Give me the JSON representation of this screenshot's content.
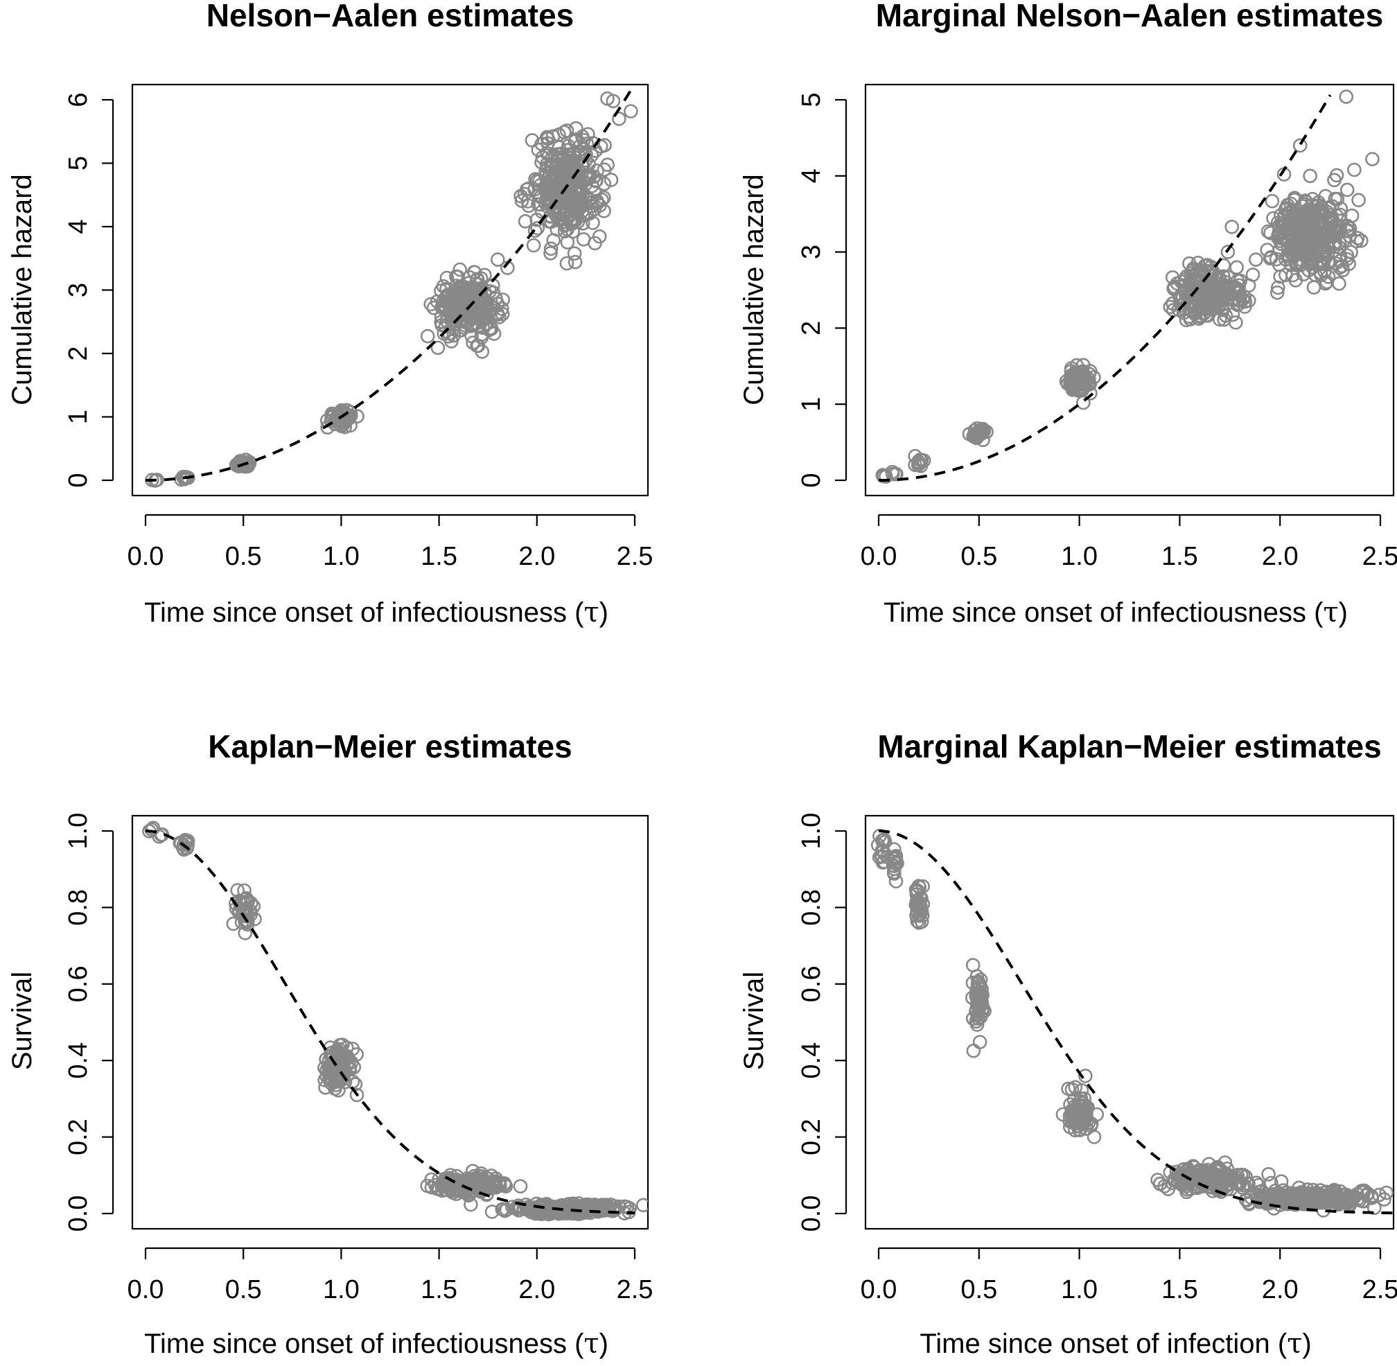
{
  "chart_data": [
    {
      "type": "scatter",
      "title": "Nelson−Aalen estimates",
      "xlabel": "Time since onset of infectiousness (",
      "xlabel_symbol": "τ",
      "xlabel_close": ")",
      "ylabel": "Cumulative hazard",
      "xlim": [
        0,
        2.5
      ],
      "ylim": [
        0,
        6
      ],
      "xticks": [
        "0.0",
        "0.5",
        "1.0",
        "1.5",
        "2.0",
        "2.5"
      ],
      "yticks": [
        "0",
        "1",
        "2",
        "3",
        "4",
        "5",
        "6"
      ],
      "point_color": "#888888",
      "reference_curve": {
        "style": "dashed",
        "color": "#000000",
        "formula": "tau^2",
        "x_range": [
          0,
          2.52
        ]
      },
      "clusters": [
        {
          "x": 0.04,
          "y": 0.0,
          "sx": 0.01,
          "sy": 0.01,
          "n": 3
        },
        {
          "x": 0.2,
          "y": 0.04,
          "sx": 0.015,
          "sy": 0.015,
          "n": 8
        },
        {
          "x": 0.5,
          "y": 0.25,
          "sx": 0.025,
          "sy": 0.03,
          "n": 25
        },
        {
          "x": 1.0,
          "y": 1.0,
          "sx": 0.035,
          "sy": 0.06,
          "n": 60
        },
        {
          "x": 1.65,
          "y": 2.72,
          "sx": 0.08,
          "sy": 0.22,
          "n": 220
        },
        {
          "x": 2.15,
          "y": 4.62,
          "sx": 0.09,
          "sy": 0.4,
          "n": 320
        }
      ],
      "outliers": [
        {
          "x": 2.36,
          "y": 6.02
        },
        {
          "x": 2.39,
          "y": 5.98
        },
        {
          "x": 2.48,
          "y": 5.82
        },
        {
          "x": 2.42,
          "y": 5.7
        },
        {
          "x": 2.2,
          "y": 5.55
        },
        {
          "x": 1.8,
          "y": 3.48
        },
        {
          "x": 1.85,
          "y": 3.35
        }
      ]
    },
    {
      "type": "scatter",
      "title": "Marginal Nelson−Aalen estimates",
      "xlabel": "Time since onset of infectiousness (",
      "xlabel_symbol": "τ",
      "xlabel_close": ")",
      "ylabel": "Cumulative hazard",
      "xlim": [
        0,
        2.5
      ],
      "ylim": [
        0,
        5
      ],
      "xticks": [
        "0.0",
        "0.5",
        "1.0",
        "1.5",
        "2.0",
        "2.5"
      ],
      "yticks": [
        "0",
        "1",
        "2",
        "3",
        "4",
        "5"
      ],
      "point_color": "#888888",
      "reference_curve": {
        "style": "dashed",
        "color": "#000000",
        "formula": "tau^2",
        "x_range": [
          0,
          2.25
        ]
      },
      "clusters": [
        {
          "x": 0.03,
          "y": 0.05,
          "sx": 0.01,
          "sy": 0.02,
          "n": 4
        },
        {
          "x": 0.08,
          "y": 0.1,
          "sx": 0.01,
          "sy": 0.02,
          "n": 4
        },
        {
          "x": 0.2,
          "y": 0.24,
          "sx": 0.015,
          "sy": 0.04,
          "n": 10
        },
        {
          "x": 0.5,
          "y": 0.62,
          "sx": 0.02,
          "sy": 0.05,
          "n": 30
        },
        {
          "x": 1.0,
          "y": 1.3,
          "sx": 0.03,
          "sy": 0.08,
          "n": 70
        },
        {
          "x": 1.65,
          "y": 2.45,
          "sx": 0.08,
          "sy": 0.18,
          "n": 220
        },
        {
          "x": 2.15,
          "y": 3.2,
          "sx": 0.1,
          "sy": 0.25,
          "n": 320
        }
      ],
      "outliers": [
        {
          "x": 2.33,
          "y": 5.04
        },
        {
          "x": 2.1,
          "y": 4.4
        },
        {
          "x": 2.46,
          "y": 4.22
        },
        {
          "x": 2.37,
          "y": 4.08
        },
        {
          "x": 2.02,
          "y": 4.02
        },
        {
          "x": 1.76,
          "y": 3.33
        },
        {
          "x": 1.74,
          "y": 3.0
        },
        {
          "x": 1.02,
          "y": 1.02
        },
        {
          "x": 1.88,
          "y": 2.9
        }
      ]
    },
    {
      "type": "scatter",
      "title": "Kaplan−Meier estimates",
      "xlabel": "Time since onset of infectiousness (",
      "xlabel_symbol": "τ",
      "xlabel_close": ")",
      "ylabel": "Survival",
      "xlim": [
        0,
        2.5
      ],
      "ylim": [
        0,
        1
      ],
      "xticks": [
        "0.0",
        "0.5",
        "1.0",
        "1.5",
        "2.0",
        "2.5"
      ],
      "yticks": [
        "0.0",
        "0.2",
        "0.4",
        "0.6",
        "0.8",
        "1.0"
      ],
      "point_color": "#888888",
      "reference_curve": {
        "style": "dashed",
        "color": "#000000",
        "formula": "exp(-tau^2)",
        "x_range": [
          0,
          2.5
        ]
      },
      "clusters": [
        {
          "x": 0.03,
          "y": 1.0,
          "sx": 0.008,
          "sy": 0.003,
          "n": 3
        },
        {
          "x": 0.08,
          "y": 0.99,
          "sx": 0.008,
          "sy": 0.004,
          "n": 3
        },
        {
          "x": 0.2,
          "y": 0.96,
          "sx": 0.015,
          "sy": 0.012,
          "n": 12
        },
        {
          "x": 0.5,
          "y": 0.79,
          "sx": 0.02,
          "sy": 0.02,
          "n": 40
        },
        {
          "x": 0.98,
          "y": 0.38,
          "sx": 0.035,
          "sy": 0.03,
          "n": 90
        },
        {
          "x": 1.65,
          "y": 0.075,
          "sx": 0.09,
          "sy": 0.012,
          "n": 200
        },
        {
          "x": 2.15,
          "y": 0.013,
          "sx": 0.15,
          "sy": 0.006,
          "n": 260
        }
      ],
      "outliers": [
        {
          "x": 0.47,
          "y": 0.845
        },
        {
          "x": 1.08,
          "y": 0.31
        },
        {
          "x": 2.47,
          "y": 0.004
        }
      ]
    },
    {
      "type": "scatter",
      "title": "Marginal Kaplan−Meier estimates",
      "xlabel": "Time since onset of infection (",
      "xlabel_symbol": "τ",
      "xlabel_close": ")",
      "ylabel": "Survival",
      "xlim": [
        0,
        2.5
      ],
      "ylim": [
        0,
        1
      ],
      "xticks": [
        "0.0",
        "0.5",
        "1.0",
        "1.5",
        "2.0",
        "2.5"
      ],
      "yticks": [
        "0.0",
        "0.2",
        "0.4",
        "0.6",
        "0.8",
        "1.0"
      ],
      "point_color": "#888888",
      "reference_curve": {
        "style": "dashed",
        "color": "#000000",
        "formula": "exp(-tau^2)",
        "x_range": [
          0,
          2.65
        ]
      },
      "clusters": [
        {
          "x": 0.02,
          "y": 0.95,
          "sx": 0.01,
          "sy": 0.02,
          "n": 15
        },
        {
          "x": 0.08,
          "y": 0.91,
          "sx": 0.01,
          "sy": 0.02,
          "n": 15
        },
        {
          "x": 0.2,
          "y": 0.8,
          "sx": 0.01,
          "sy": 0.03,
          "n": 30
        },
        {
          "x": 0.5,
          "y": 0.55,
          "sx": 0.015,
          "sy": 0.04,
          "n": 45
        },
        {
          "x": 1.0,
          "y": 0.26,
          "sx": 0.03,
          "sy": 0.025,
          "n": 80
        },
        {
          "x": 1.65,
          "y": 0.09,
          "sx": 0.1,
          "sy": 0.015,
          "n": 200
        },
        {
          "x": 2.15,
          "y": 0.04,
          "sx": 0.15,
          "sy": 0.01,
          "n": 260
        }
      ],
      "outliers": [
        {
          "x": 1.03,
          "y": 0.36
        },
        {
          "x": 0.98,
          "y": 0.33
        },
        {
          "x": 2.47,
          "y": 0.015
        },
        {
          "x": 0.49,
          "y": 0.62
        },
        {
          "x": 0.22,
          "y": 0.855
        }
      ]
    }
  ]
}
